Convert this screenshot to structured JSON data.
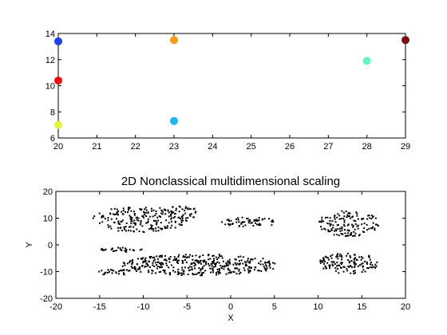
{
  "chart_data": [
    {
      "type": "scatter",
      "title": "",
      "xlabel": "",
      "ylabel": "",
      "xlim": [
        20,
        29
      ],
      "ylim": [
        6,
        14
      ],
      "xticks": [
        20,
        21,
        22,
        23,
        24,
        25,
        26,
        27,
        28,
        29
      ],
      "yticks": [
        6,
        8,
        10,
        12,
        14
      ],
      "grid": false,
      "points": [
        {
          "x": 20,
          "y": 13.4,
          "color": "#1f3fe6"
        },
        {
          "x": 20,
          "y": 10.4,
          "color": "#ee1111"
        },
        {
          "x": 20,
          "y": 7.0,
          "color": "#e4f53a"
        },
        {
          "x": 23,
          "y": 13.5,
          "color": "#ff9a10"
        },
        {
          "x": 23,
          "y": 7.3,
          "color": "#19b6f0"
        },
        {
          "x": 28,
          "y": 11.9,
          "color": "#5ff5c8"
        },
        {
          "x": 29,
          "y": 13.5,
          "color": "#7a0f0f"
        }
      ]
    },
    {
      "type": "scatter",
      "title": "2D Nonclassical multidimensional scaling",
      "xlabel": "X",
      "ylabel": "Y",
      "xlim": [
        -20,
        20
      ],
      "ylim": [
        -20,
        20
      ],
      "xticks": [
        -20,
        -15,
        -10,
        -5,
        0,
        5,
        10,
        15,
        20
      ],
      "yticks": [
        -20,
        -10,
        0,
        10,
        20
      ],
      "grid": false,
      "marker_color": "#000000",
      "clusters": [
        {
          "cx": -10.5,
          "cy": 9.5,
          "rx": 5.5,
          "ry": 4.8,
          "count": 200
        },
        {
          "cx": -5.8,
          "cy": 12.0,
          "rx": 2.2,
          "ry": 2.5,
          "count": 40
        },
        {
          "cx": 2.2,
          "cy": 8.5,
          "rx": 3.2,
          "ry": 1.8,
          "count": 60
        },
        {
          "cx": 13.5,
          "cy": 8.0,
          "rx": 3.5,
          "ry": 4.8,
          "count": 140
        },
        {
          "cx": -12.5,
          "cy": -1.8,
          "rx": 2.5,
          "ry": 0.9,
          "count": 30
        },
        {
          "cx": -13.2,
          "cy": -10.2,
          "rx": 2.0,
          "ry": 1.2,
          "count": 30
        },
        {
          "cx": -3.5,
          "cy": -7.5,
          "rx": 9.0,
          "ry": 4.0,
          "count": 380
        },
        {
          "cx": 13.5,
          "cy": -6.8,
          "rx": 3.5,
          "ry": 4.0,
          "count": 130
        }
      ]
    }
  ]
}
